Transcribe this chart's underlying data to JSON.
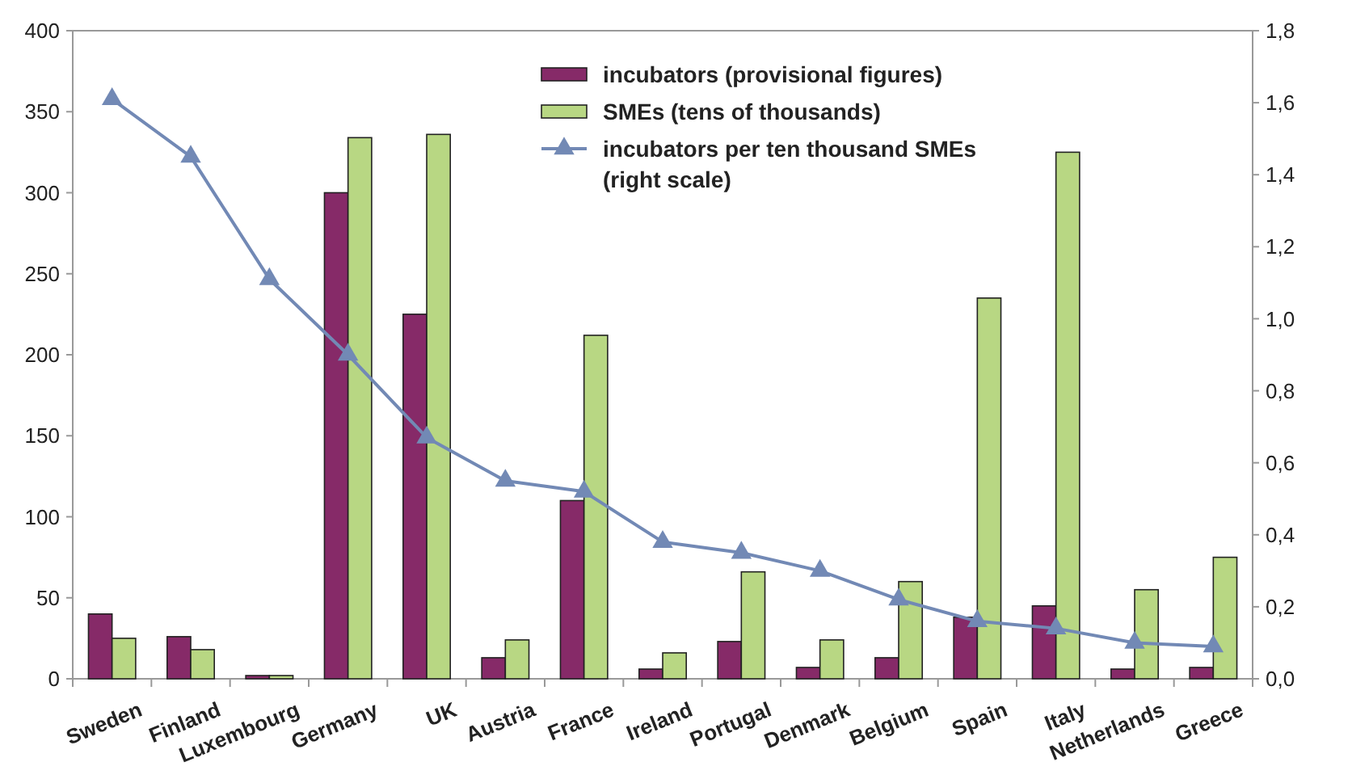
{
  "chart_data": {
    "type": "bar",
    "categories": [
      "Sweden",
      "Finland",
      "Luxembourg",
      "Germany",
      "UK",
      "Austria",
      "France",
      "Ireland",
      "Portugal",
      "Denmark",
      "Belgium",
      "Spain",
      "Italy",
      "Netherlands",
      "Greece"
    ],
    "series": [
      {
        "name": "incubators (provisional figures)",
        "color": "#862a68",
        "values": [
          40,
          26,
          2,
          300,
          225,
          13,
          110,
          6,
          23,
          7,
          13,
          38,
          45,
          6,
          7
        ]
      },
      {
        "name": "SMEs (tens of thousands)",
        "color": "#b8d783",
        "values": [
          25,
          18,
          2,
          334,
          336,
          24,
          212,
          16,
          66,
          24,
          60,
          235,
          325,
          55,
          75
        ]
      },
      {
        "name": "incubators per ten thousand SMEs (right scale)",
        "type": "line",
        "axis": "y2",
        "color": "#7289b5",
        "marker": "triangle",
        "values": [
          1.61,
          1.45,
          1.11,
          0.9,
          0.67,
          0.55,
          0.52,
          0.38,
          0.35,
          0.3,
          0.22,
          0.16,
          0.14,
          0.1,
          0.09
        ]
      }
    ],
    "ylim": [
      0,
      400
    ],
    "yticks": [
      0,
      50,
      100,
      150,
      200,
      250,
      300,
      350,
      400
    ],
    "y2lim": [
      0,
      1.8
    ],
    "y2ticks": [
      {
        "value": 0,
        "label": "0,0"
      },
      {
        "value": 0.2,
        "label": "0,2"
      },
      {
        "value": 0.4,
        "label": "0,4"
      },
      {
        "value": 0.6,
        "label": "0,6"
      },
      {
        "value": 0.8,
        "label": "0,8"
      },
      {
        "value": 1,
        "label": "1,0"
      },
      {
        "value": 1.2,
        "label": "1,2"
      },
      {
        "value": 1.4,
        "label": "1,4"
      },
      {
        "value": 1.6,
        "label": "1,6"
      },
      {
        "value": 1.8,
        "label": "1,8"
      }
    ],
    "legend": "top"
  }
}
